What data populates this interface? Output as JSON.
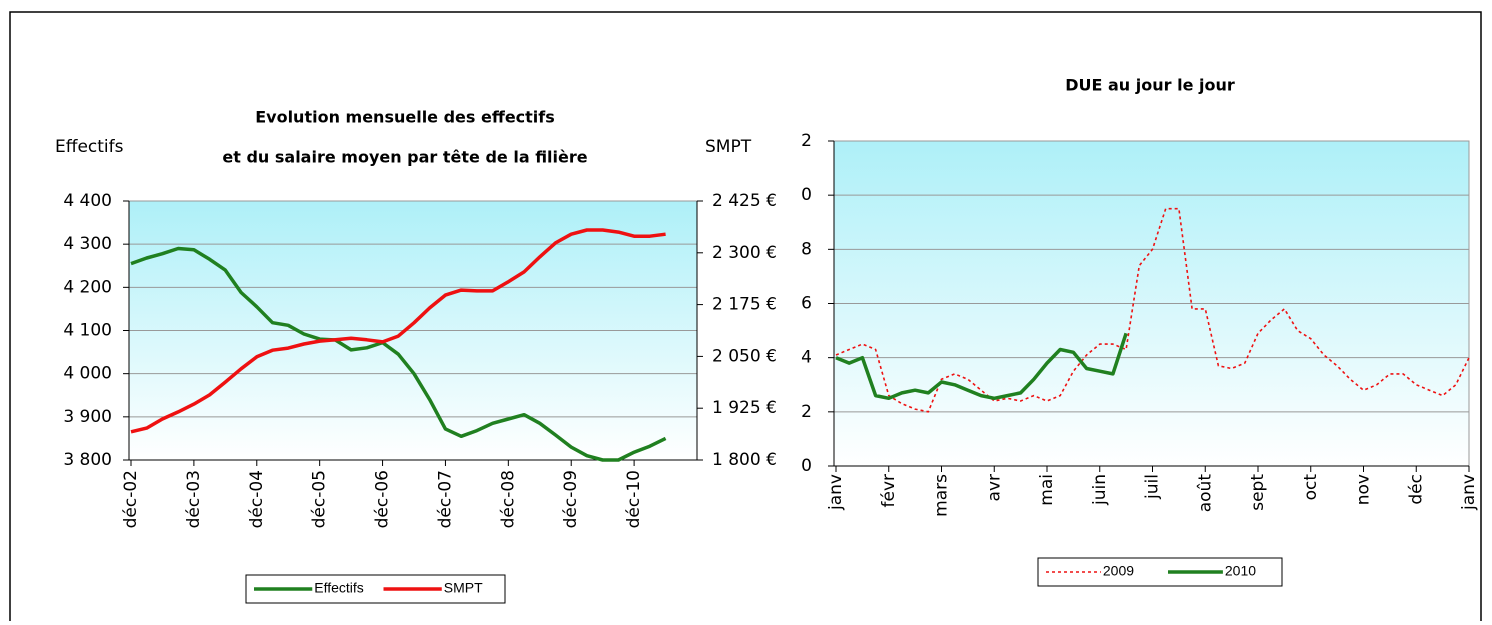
{
  "chart_data": [
    {
      "type": "line",
      "title": [
        "Evolution mensuelle des effectifs",
        "et du salaire moyen par tête de la filière"
      ],
      "ylabel": "Effectifs",
      "y2label": "SMPT",
      "categories": [
        "déc-02",
        null,
        null,
        null,
        "déc-03",
        null,
        null,
        null,
        "déc-04",
        null,
        null,
        null,
        "déc-05",
        null,
        null,
        null,
        "déc-06",
        null,
        null,
        null,
        "déc-07",
        null,
        null,
        null,
        "déc-08",
        null,
        null,
        null,
        "déc-09",
        null,
        null,
        null,
        "déc-10",
        null,
        null,
        null,
        null
      ],
      "ylim": [
        3800,
        4400
      ],
      "yticks": [
        {
          "value": 3800,
          "label": "3 800"
        },
        {
          "value": 3900,
          "label": "3 900"
        },
        {
          "value": 4000,
          "label": "4 000"
        },
        {
          "value": 4100,
          "label": "4 100"
        },
        {
          "value": 4200,
          "label": "4 200"
        },
        {
          "value": 4300,
          "label": "4 300"
        },
        {
          "value": 4400,
          "label": "4 400"
        }
      ],
      "y2lim": [
        1800,
        2425
      ],
      "y2ticks": [
        {
          "value": 1800,
          "label": "1 800 €"
        },
        {
          "value": 1925,
          "label": "1 925 €"
        },
        {
          "value": 2050,
          "label": "2 050 €"
        },
        {
          "value": 2175,
          "label": "2 175 €"
        },
        {
          "value": 2300,
          "label": "2 300 €"
        },
        {
          "value": 2425,
          "label": "2 425 €"
        }
      ],
      "grid": true,
      "legend": "bottom",
      "series": [
        {
          "name": "Effectifs",
          "color": "#208020",
          "values": [
            4255,
            4268,
            4278,
            4290,
            4287,
            4265,
            4240,
            4188,
            4155,
            4118,
            4112,
            4092,
            4080,
            4078,
            4055,
            4060,
            4072,
            4045,
            4000,
            3940,
            3872,
            3855,
            3868,
            3885,
            3895,
            3905,
            3885,
            3858,
            3830,
            3810,
            3800,
            3800,
            3818,
            3832,
            3850,
            null,
            null
          ]
        },
        {
          "name": "SMPT",
          "color": "#ee1111",
          "axis": "y2",
          "values": [
            1868,
            1877,
            1899,
            1916,
            1935,
            1957,
            1988,
            2020,
            2049,
            2065,
            2070,
            2080,
            2087,
            2090,
            2094,
            2090,
            2085,
            2099,
            2131,
            2167,
            2198,
            2210,
            2208,
            2208,
            2230,
            2254,
            2290,
            2324,
            2345,
            2355,
            2355,
            2350,
            2340,
            2340,
            2345,
            null,
            null
          ]
        }
      ]
    },
    {
      "type": "line",
      "title": [
        "DUE au jour le jour"
      ],
      "categories": [
        "janv",
        null,
        null,
        null,
        "févr",
        null,
        null,
        null,
        "mars",
        null,
        null,
        null,
        "avr",
        null,
        null,
        null,
        "mai",
        null,
        null,
        null,
        "juin",
        null,
        null,
        null,
        "juil",
        null,
        null,
        null,
        "août",
        null,
        null,
        null,
        "sept",
        null,
        null,
        null,
        "oct",
        null,
        null,
        null,
        "nov",
        null,
        null,
        null,
        "déc",
        null,
        null,
        null,
        "janv"
      ],
      "ylim": [
        0,
        12
      ],
      "yticks": [
        0,
        2,
        4,
        6,
        8,
        {
          "value": 10,
          "label": "0"
        },
        {
          "value": 12,
          "label": "2"
        }
      ],
      "grid": true,
      "legend": "bottom",
      "series": [
        {
          "name": "2009",
          "color": "#ee1111",
          "dash": "dotted",
          "values": [
            4.1,
            4.3,
            4.5,
            4.3,
            2.6,
            2.3,
            2.1,
            2.0,
            3.2,
            3.4,
            3.2,
            2.8,
            2.4,
            2.5,
            2.4,
            2.6,
            2.4,
            2.6,
            3.5,
            4.1,
            4.5,
            4.5,
            4.3,
            7.4,
            8.0,
            9.5,
            9.5,
            5.8,
            5.8,
            3.7,
            3.6,
            3.8,
            4.9,
            5.4,
            5.8,
            5.0,
            4.7,
            4.1,
            3.7,
            3.2,
            2.8,
            3.0,
            3.4,
            3.4,
            3.0,
            2.8,
            2.6,
            3.0,
            4.0
          ]
        },
        {
          "name": "2010",
          "color": "#208020",
          "values": [
            4.0,
            3.8,
            4.0,
            2.6,
            2.5,
            2.7,
            2.8,
            2.7,
            3.1,
            3.0,
            2.8,
            2.6,
            2.5,
            2.6,
            2.7,
            3.2,
            3.8,
            4.3,
            4.2,
            3.6,
            3.5,
            3.4,
            4.9,
            null,
            null,
            null,
            null,
            null,
            null,
            null,
            null,
            null,
            null,
            null,
            null,
            null,
            null,
            null,
            null,
            null,
            null,
            null,
            null,
            null,
            null,
            null,
            null,
            null,
            null
          ]
        }
      ]
    }
  ]
}
